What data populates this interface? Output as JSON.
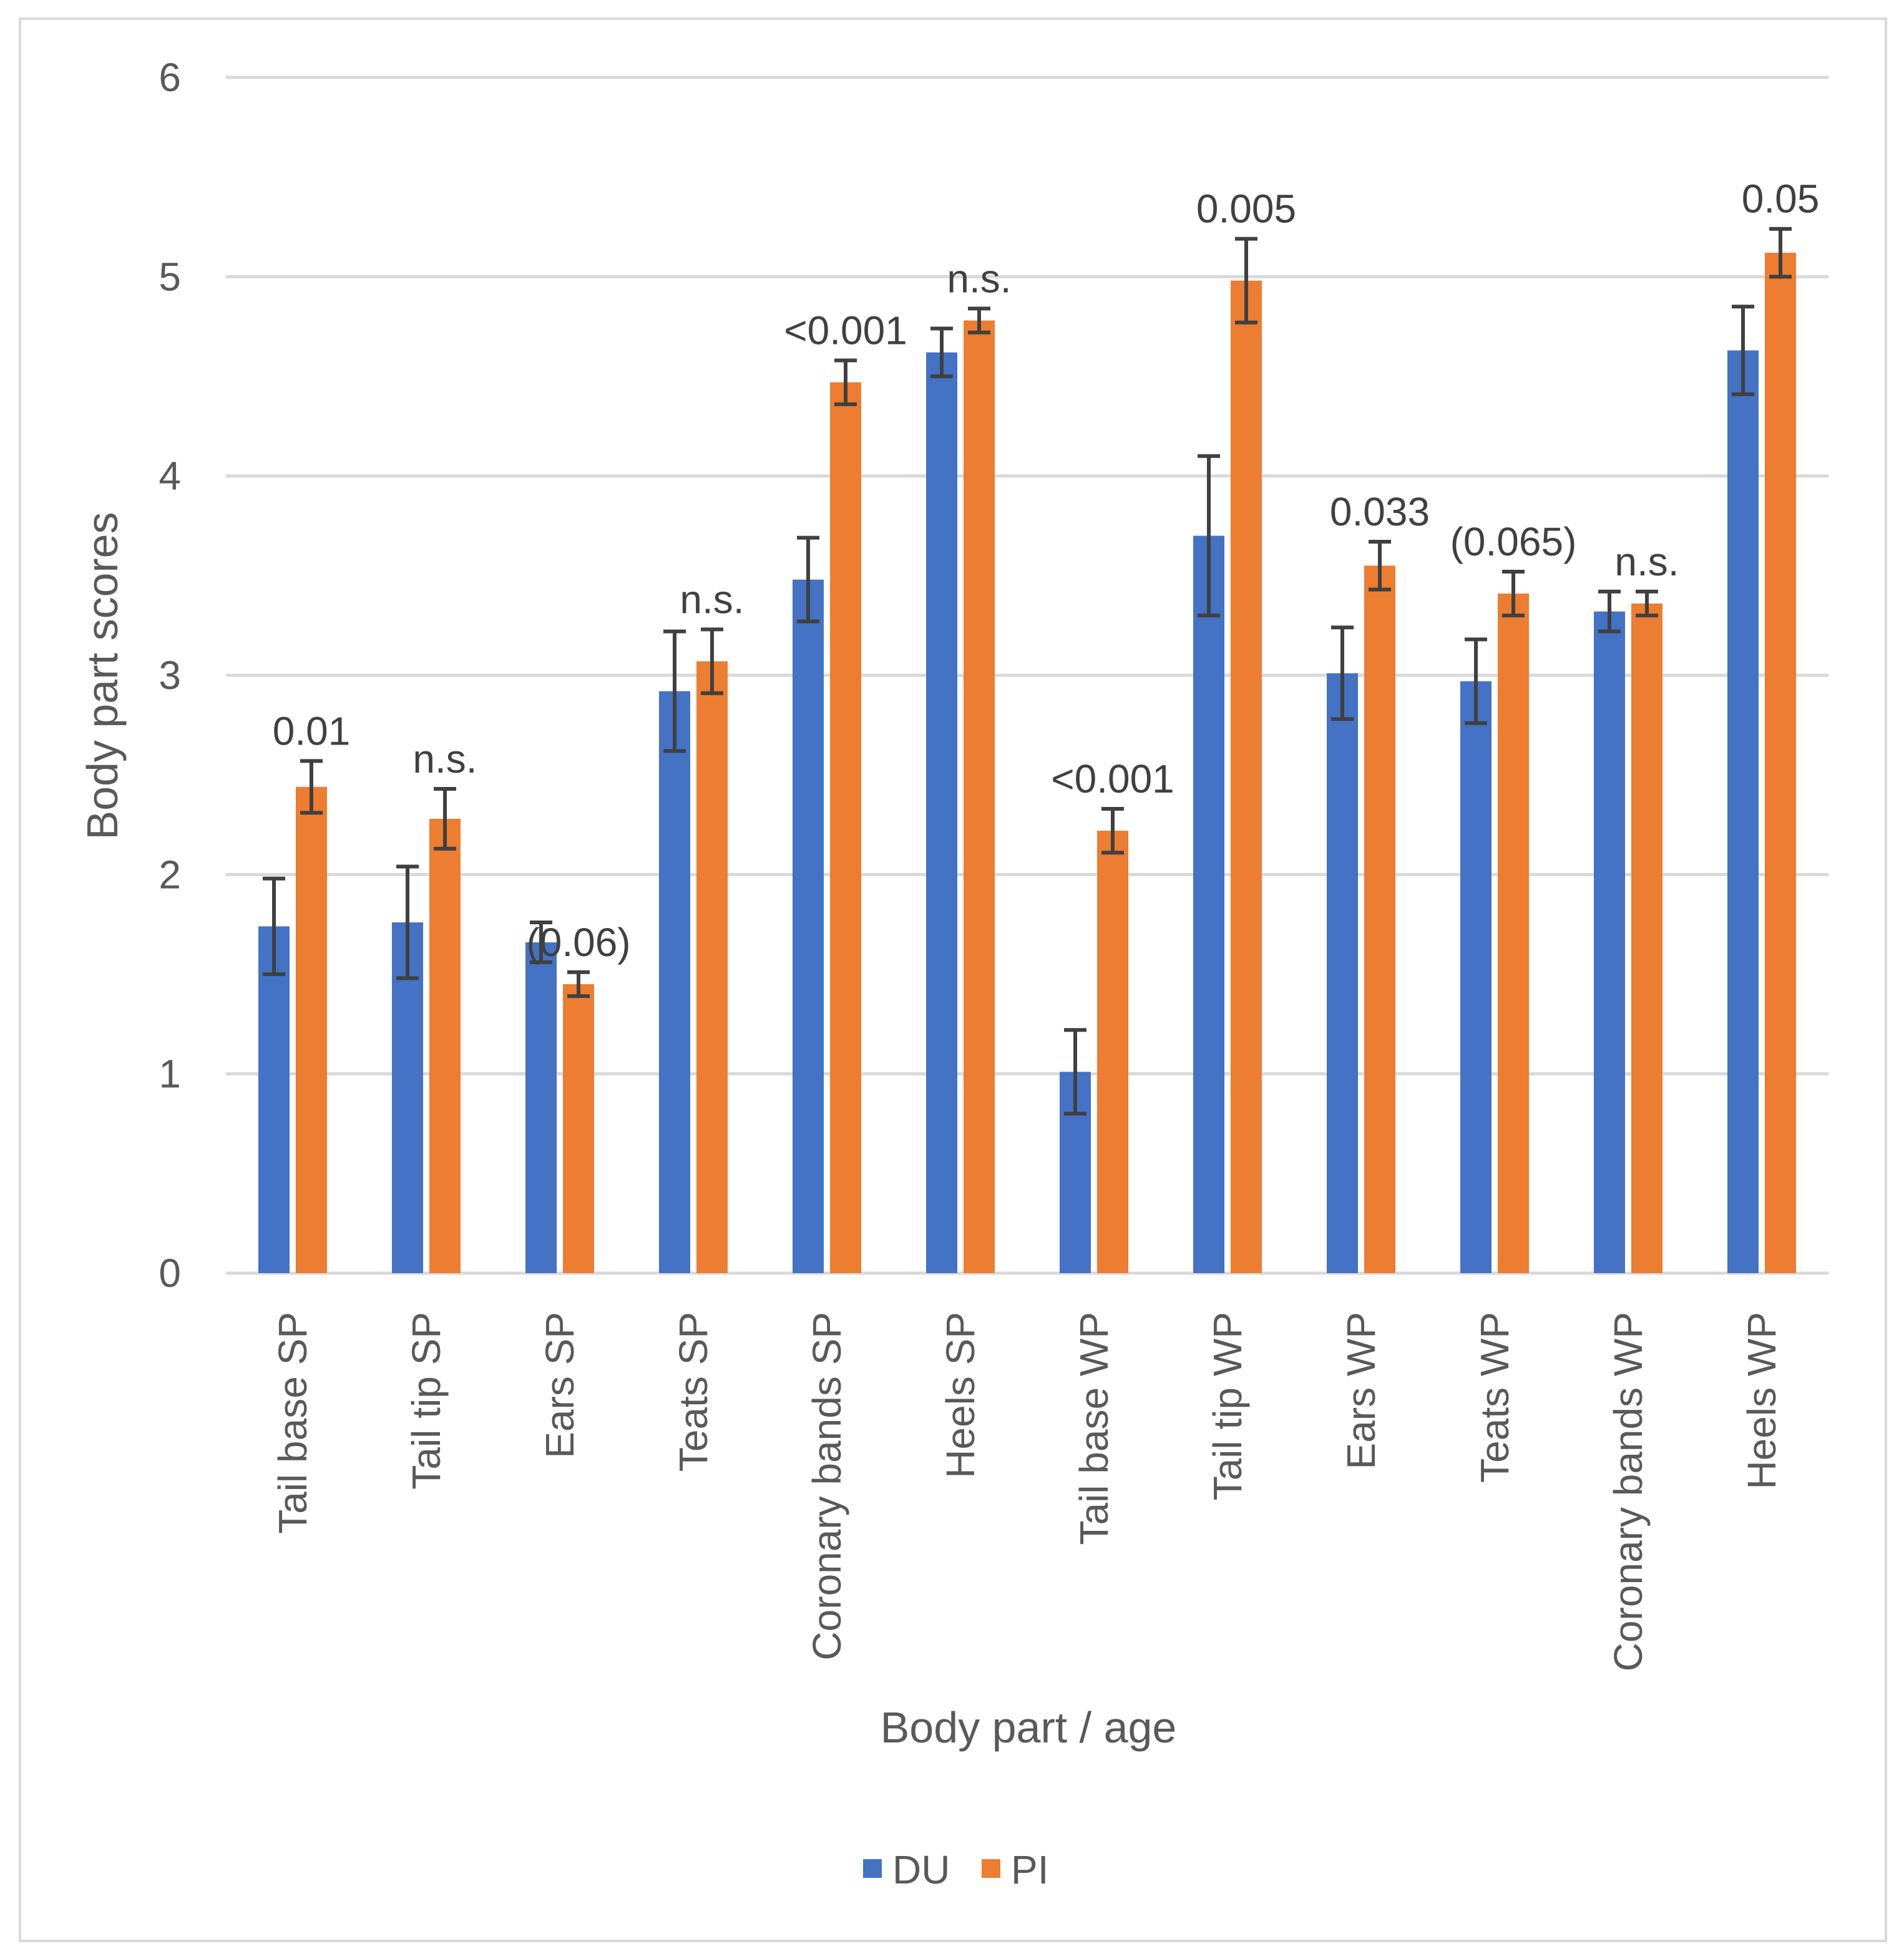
{
  "chart_data": {
    "type": "bar",
    "title": "",
    "xlabel": "Body part / age",
    "ylabel": "Body part scores",
    "ylim": [
      0,
      6
    ],
    "yticks": [
      0,
      1,
      2,
      3,
      4,
      5,
      6
    ],
    "grid": true,
    "legend_position": "bottom",
    "categories": [
      "Tail base SP",
      "Tail tip SP",
      "Ears SP",
      "Teats SP",
      "Coronary bands SP",
      "Heels SP",
      "Tail base WP",
      "Tail tip WP",
      "Ears WP",
      "Teats WP",
      "Coronary bands WP",
      "Heels WP"
    ],
    "series": [
      {
        "name": "DU",
        "color": "#4472c4",
        "values": [
          1.74,
          1.76,
          1.66,
          2.92,
          3.48,
          4.62,
          1.01,
          3.7,
          3.01,
          2.97,
          3.32,
          4.63
        ],
        "error": [
          0.24,
          0.28,
          0.1,
          0.3,
          0.21,
          0.12,
          0.21,
          0.4,
          0.23,
          0.21,
          0.1,
          0.22
        ]
      },
      {
        "name": "PI",
        "color": "#ed7d31",
        "values": [
          2.44,
          2.28,
          1.45,
          3.07,
          4.47,
          4.78,
          2.22,
          4.98,
          3.55,
          3.41,
          3.36,
          5.12
        ],
        "error": [
          0.13,
          0.15,
          0.06,
          0.16,
          0.11,
          0.06,
          0.11,
          0.21,
          0.12,
          0.11,
          0.06,
          0.12
        ]
      }
    ],
    "annotations": [
      "0.01",
      "n.s.",
      "(0.06)",
      "n.s.",
      "<0.001",
      "n.s.",
      "<0.001",
      "0.005",
      "0.033",
      "(0.065)",
      "n.s.",
      "0.05"
    ]
  }
}
